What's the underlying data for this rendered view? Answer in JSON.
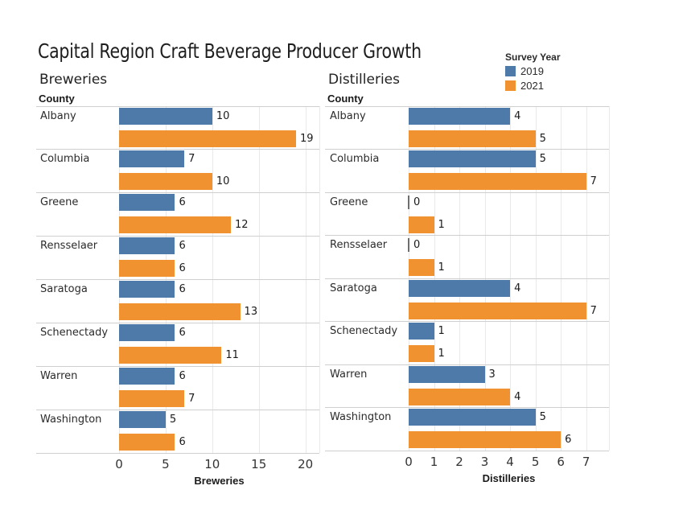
{
  "title": "Capital Region Craft Beverage Producer Growth",
  "legend": {
    "title": "Survey Year",
    "items": [
      {
        "label": "2019",
        "color": "#4d7aa9"
      },
      {
        "label": "2021",
        "color": "#f0922f"
      }
    ]
  },
  "chart_data": [
    {
      "type": "bar",
      "orientation": "horizontal",
      "title": "Breweries",
      "row_header": "County",
      "xlabel": "Breweries",
      "xticks": [
        0,
        5,
        10,
        15,
        20
      ],
      "xlim": [
        0,
        21.5
      ],
      "grid": true,
      "categories": [
        "Albany",
        "Columbia",
        "Greene",
        "Rensselaer",
        "Saratoga",
        "Schenectady",
        "Warren",
        "Washington"
      ],
      "series": [
        {
          "name": "2019",
          "color": "#4d7aa9",
          "values": [
            10,
            7,
            6,
            6,
            6,
            6,
            6,
            5
          ]
        },
        {
          "name": "2021",
          "color": "#f0922f",
          "values": [
            19,
            10,
            12,
            6,
            13,
            11,
            7,
            6
          ]
        }
      ]
    },
    {
      "type": "bar",
      "orientation": "horizontal",
      "title": "Distilleries",
      "row_header": "County",
      "xlabel": "Distilleries",
      "xticks": [
        0,
        1,
        2,
        3,
        4,
        5,
        6,
        7
      ],
      "xlim": [
        0,
        7.9
      ],
      "grid": true,
      "categories": [
        "Albany",
        "Columbia",
        "Greene",
        "Rensselaer",
        "Saratoga",
        "Schenectady",
        "Warren",
        "Washington"
      ],
      "series": [
        {
          "name": "2019",
          "color": "#4d7aa9",
          "values": [
            4,
            5,
            0,
            0,
            4,
            1,
            3,
            5
          ]
        },
        {
          "name": "2021",
          "color": "#f0922f",
          "values": [
            5,
            7,
            1,
            1,
            7,
            1,
            4,
            6
          ]
        }
      ]
    }
  ]
}
